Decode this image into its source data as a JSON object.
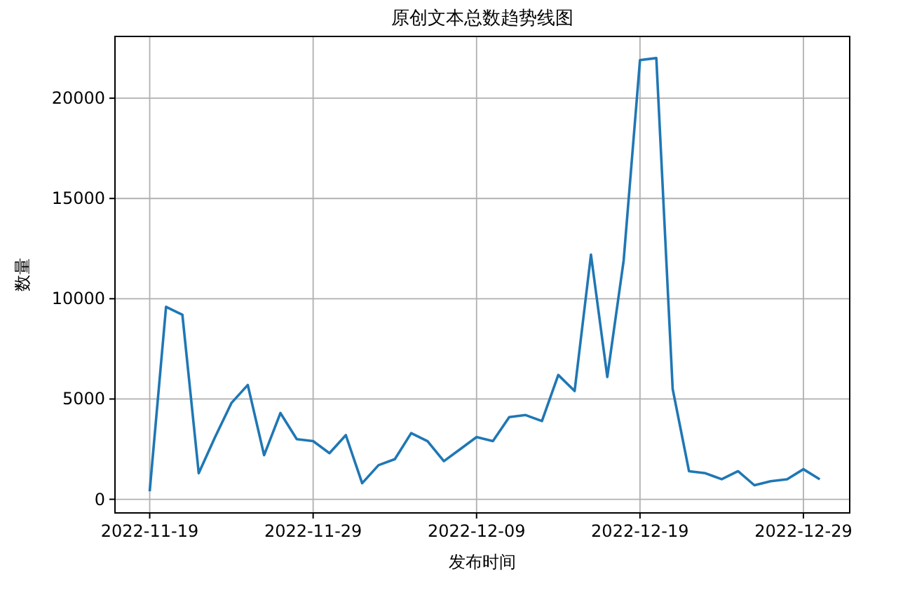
{
  "chart_data": {
    "type": "line",
    "title": "原创文本总数趋势线图",
    "xlabel": "发布时间",
    "ylabel": "数量",
    "x": [
      "2022-11-19",
      "2022-11-20",
      "2022-11-21",
      "2022-11-22",
      "2022-11-23",
      "2022-11-24",
      "2022-11-25",
      "2022-11-26",
      "2022-11-27",
      "2022-11-28",
      "2022-11-29",
      "2022-11-30",
      "2022-12-01",
      "2022-12-02",
      "2022-12-03",
      "2022-12-04",
      "2022-12-05",
      "2022-12-06",
      "2022-12-07",
      "2022-12-08",
      "2022-12-09",
      "2022-12-10",
      "2022-12-11",
      "2022-12-12",
      "2022-12-13",
      "2022-12-14",
      "2022-12-15",
      "2022-12-16",
      "2022-12-17",
      "2022-12-18",
      "2022-12-19",
      "2022-12-20",
      "2022-12-21",
      "2022-12-22",
      "2022-12-23",
      "2022-12-24",
      "2022-12-25",
      "2022-12-26",
      "2022-12-27",
      "2022-12-28",
      "2022-12-29",
      "2022-12-30"
    ],
    "series": [
      {
        "color": "#1f77b4",
        "values": [
          400,
          9600,
          9200,
          1300,
          3100,
          4800,
          5700,
          2200,
          4300,
          3000,
          2900,
          2300,
          3200,
          800,
          1700,
          2000,
          3300,
          2900,
          1900,
          2500,
          3100,
          2900,
          4100,
          4200,
          3900,
          6200,
          5400,
          12200,
          6100,
          11900,
          21900,
          22000,
          5500,
          1400,
          1300,
          1000,
          1400,
          700,
          900,
          1000,
          1500,
          1000
        ]
      }
    ],
    "xlim": [
      "2022-11-16T21:00",
      "2022-12-31T20:00"
    ],
    "xticks": [
      "2022-11-19",
      "2022-11-29",
      "2022-12-09",
      "2022-12-19",
      "2022-12-29"
    ],
    "ylim": [
      -680,
      23080
    ],
    "yticks": [
      0,
      5000,
      10000,
      15000,
      20000
    ],
    "grid": true
  }
}
